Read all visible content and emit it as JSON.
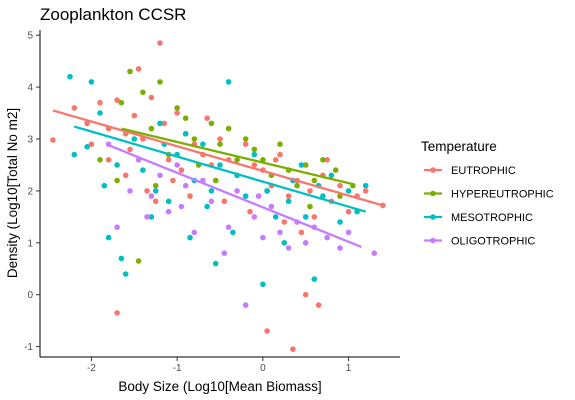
{
  "chart_data": {
    "type": "scatter",
    "title": "Zooplankton CCSR",
    "xlabel": "Body Size (Log10[Mean Biomass]",
    "ylabel": "Density (Log10[Total No m2]",
    "xlim": [
      -2.6,
      1.6
    ],
    "ylim": [
      -1.2,
      5.1
    ],
    "x_ticks": [
      -2,
      -1,
      0,
      1
    ],
    "y_ticks": [
      -1,
      0,
      1,
      2,
      3,
      4,
      5
    ],
    "grid": false,
    "legend": {
      "title": "Temperature",
      "placement": "right"
    },
    "series": [
      {
        "name": "EUTROPHIC",
        "color": "#F8766D",
        "fit": {
          "x": [
            -2.45,
            1.4
          ],
          "y": [
            3.55,
            1.72
          ]
        },
        "points": [
          [
            -2.45,
            2.98
          ],
          [
            -2.2,
            3.6
          ],
          [
            -2.05,
            3.3
          ],
          [
            -1.9,
            3.7
          ],
          [
            -1.8,
            3.2
          ],
          [
            -1.7,
            3.75
          ],
          [
            -1.6,
            3.1
          ],
          [
            -1.55,
            2.8
          ],
          [
            -1.5,
            3.45
          ],
          [
            -1.45,
            4.35
          ],
          [
            -1.4,
            3.0
          ],
          [
            -1.3,
            3.8
          ],
          [
            -1.2,
            4.85
          ],
          [
            -1.15,
            3.3
          ],
          [
            -1.1,
            2.6
          ],
          [
            -1.0,
            3.5
          ],
          [
            -0.95,
            2.4
          ],
          [
            -0.9,
            3.1
          ],
          [
            -0.8,
            2.9
          ],
          [
            -0.7,
            2.7
          ],
          [
            -0.65,
            3.4
          ],
          [
            -0.55,
            2.2
          ],
          [
            -0.5,
            3.0
          ],
          [
            -0.4,
            2.6
          ],
          [
            -0.3,
            2.3
          ],
          [
            -0.2,
            2.9
          ],
          [
            -0.1,
            2.5
          ],
          [
            0.0,
            2.4
          ],
          [
            0.05,
            -0.7
          ],
          [
            0.1,
            2.1
          ],
          [
            0.2,
            2.7
          ],
          [
            0.3,
            1.9
          ],
          [
            0.35,
            -1.05
          ],
          [
            0.4,
            2.2
          ],
          [
            0.5,
            0.0
          ],
          [
            0.55,
            2.0
          ],
          [
            0.6,
            1.5
          ],
          [
            0.65,
            -0.2
          ],
          [
            0.7,
            2.3
          ],
          [
            0.8,
            1.8
          ],
          [
            0.9,
            2.1
          ],
          [
            1.0,
            1.6
          ],
          [
            1.1,
            1.9
          ],
          [
            1.4,
            1.72
          ],
          [
            -1.7,
            -0.35
          ],
          [
            -1.35,
            2.0
          ],
          [
            -1.25,
            1.8
          ],
          [
            -0.85,
            1.9
          ],
          [
            -0.45,
            1.8
          ],
          [
            -0.15,
            1.6
          ],
          [
            0.25,
            1.4
          ],
          [
            0.45,
            1.2
          ],
          [
            -1.8,
            2.6
          ],
          [
            -2.0,
            2.9
          ],
          [
            -1.6,
            2.3
          ],
          [
            -1.05,
            2.2
          ],
          [
            -0.6,
            2.5
          ],
          [
            0.15,
            2.6
          ],
          [
            0.75,
            2.6
          ],
          [
            1.2,
            2.0
          ]
        ]
      },
      {
        "name": "HYPEREUTROPHIC",
        "color": "#7CAE00",
        "fit": {
          "x": [
            -1.65,
            1.05
          ],
          "y": [
            3.2,
            2.13
          ]
        },
        "points": [
          [
            -1.65,
            3.7
          ],
          [
            -1.55,
            4.3
          ],
          [
            -1.4,
            3.9
          ],
          [
            -1.3,
            3.2
          ],
          [
            -1.2,
            4.1
          ],
          [
            -1.1,
            2.7
          ],
          [
            -1.0,
            3.6
          ],
          [
            -0.9,
            3.4
          ],
          [
            -0.8,
            3.0
          ],
          [
            -0.75,
            2.5
          ],
          [
            -0.6,
            3.3
          ],
          [
            -0.5,
            2.9
          ],
          [
            -0.4,
            3.2
          ],
          [
            -0.3,
            2.6
          ],
          [
            -0.2,
            3.0
          ],
          [
            -0.1,
            2.8
          ],
          [
            0.0,
            2.6
          ],
          [
            0.1,
            2.3
          ],
          [
            0.2,
            2.9
          ],
          [
            0.3,
            2.4
          ],
          [
            0.4,
            2.1
          ],
          [
            0.5,
            2.5
          ],
          [
            0.6,
            2.2
          ],
          [
            0.7,
            2.6
          ],
          [
            0.85,
            2.4
          ],
          [
            0.9,
            1.9
          ],
          [
            1.05,
            2.1
          ],
          [
            -1.45,
            0.65
          ],
          [
            -1.7,
            2.2
          ],
          [
            -1.25,
            2.1
          ],
          [
            -0.55,
            2.2
          ],
          [
            0.05,
            2.0
          ],
          [
            -1.9,
            2.6
          ],
          [
            0.55,
            1.7
          ]
        ]
      },
      {
        "name": "MESOTROPHIC",
        "color": "#00BFC4",
        "fit": {
          "x": [
            -2.2,
            1.2
          ],
          "y": [
            3.24,
            1.6
          ]
        },
        "points": [
          [
            -2.25,
            4.2
          ],
          [
            -2.2,
            2.7
          ],
          [
            -2.0,
            4.1
          ],
          [
            -1.9,
            3.5
          ],
          [
            -1.85,
            2.1
          ],
          [
            -1.8,
            1.1
          ],
          [
            -1.7,
            2.5
          ],
          [
            -1.6,
            0.4
          ],
          [
            -1.5,
            3.0
          ],
          [
            -1.4,
            2.4
          ],
          [
            -1.3,
            1.5
          ],
          [
            -1.2,
            3.3
          ],
          [
            -1.15,
            2.9
          ],
          [
            -1.1,
            1.8
          ],
          [
            -1.0,
            2.7
          ],
          [
            -0.9,
            3.1
          ],
          [
            -0.85,
            1.1
          ],
          [
            -0.8,
            2.2
          ],
          [
            -0.7,
            2.9
          ],
          [
            -0.6,
            2.0
          ],
          [
            -0.5,
            2.5
          ],
          [
            -0.4,
            4.1
          ],
          [
            -0.35,
            1.2
          ],
          [
            -0.3,
            2.3
          ],
          [
            -0.2,
            1.9
          ],
          [
            -0.1,
            2.7
          ],
          [
            0.0,
            0.2
          ],
          [
            0.05,
            2.0
          ],
          [
            0.15,
            1.5
          ],
          [
            0.25,
            1.0
          ],
          [
            0.35,
            2.2
          ],
          [
            0.45,
            2.5
          ],
          [
            0.5,
            1.5
          ],
          [
            0.6,
            0.3
          ],
          [
            0.7,
            1.9
          ],
          [
            0.8,
            2.3
          ],
          [
            0.9,
            1.4
          ],
          [
            1.0,
            2.0
          ],
          [
            1.1,
            1.6
          ],
          [
            1.2,
            2.1
          ],
          [
            -1.65,
            0.7
          ],
          [
            -0.55,
            0.6
          ],
          [
            -1.25,
            2.0
          ],
          [
            -0.65,
            1.7
          ],
          [
            0.3,
            1.8
          ],
          [
            -2.05,
            2.85
          ],
          [
            0.65,
            2.1
          ]
        ]
      },
      {
        "name": "OLIGOTROPHIC",
        "color": "#C77CFF",
        "fit": {
          "x": [
            -1.8,
            1.15
          ],
          "y": [
            2.88,
            0.92
          ]
        },
        "points": [
          [
            -1.8,
            2.9
          ],
          [
            -1.7,
            1.3
          ],
          [
            -1.55,
            2.0
          ],
          [
            -1.45,
            2.6
          ],
          [
            -1.3,
            1.9
          ],
          [
            -1.2,
            2.3
          ],
          [
            -1.1,
            1.6
          ],
          [
            -1.0,
            2.5
          ],
          [
            -0.9,
            2.1
          ],
          [
            -0.8,
            1.2
          ],
          [
            -0.7,
            2.2
          ],
          [
            -0.6,
            1.8
          ],
          [
            -0.4,
            1.3
          ],
          [
            -0.3,
            2.0
          ],
          [
            -0.2,
            -0.2
          ],
          [
            -0.1,
            1.5
          ],
          [
            0.0,
            1.1
          ],
          [
            0.1,
            1.7
          ],
          [
            0.3,
            0.9
          ],
          [
            0.4,
            1.4
          ],
          [
            0.5,
            1.0
          ],
          [
            0.6,
            1.3
          ],
          [
            0.9,
            0.9
          ],
          [
            1.0,
            1.2
          ],
          [
            1.3,
            0.8
          ],
          [
            -0.45,
            0.8
          ],
          [
            -0.05,
            1.9
          ],
          [
            0.2,
            1.2
          ],
          [
            -1.35,
            1.5
          ],
          [
            -0.95,
            1.7
          ],
          [
            0.75,
            1.1
          ]
        ]
      }
    ]
  }
}
